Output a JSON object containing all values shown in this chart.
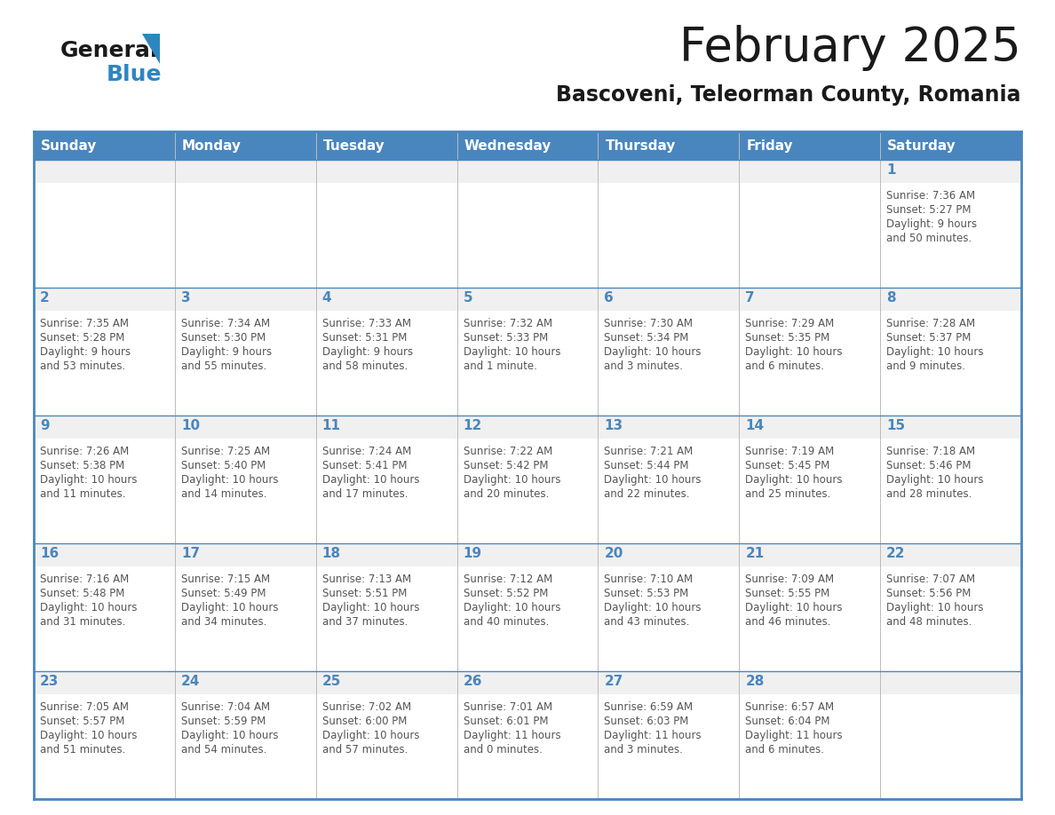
{
  "title": "February 2025",
  "subtitle": "Bascoveni, Teleorman County, Romania",
  "days_of_week": [
    "Sunday",
    "Monday",
    "Tuesday",
    "Wednesday",
    "Thursday",
    "Friday",
    "Saturday"
  ],
  "header_bg": "#4a86be",
  "header_text": "#ffffff",
  "cell_bg_gray": "#f0f0f0",
  "cell_bg_white": "#ffffff",
  "border_color": "#4a86be",
  "day_number_color": "#4a86be",
  "text_color": "#555555",
  "title_color": "#1a1a1a",
  "logo_general_color": "#1a1a1a",
  "logo_blue_color": "#2e86c1",
  "calendar_data": [
    [
      {
        "day": null,
        "info": ""
      },
      {
        "day": null,
        "info": ""
      },
      {
        "day": null,
        "info": ""
      },
      {
        "day": null,
        "info": ""
      },
      {
        "day": null,
        "info": ""
      },
      {
        "day": null,
        "info": ""
      },
      {
        "day": 1,
        "info": "Sunrise: 7:36 AM\nSunset: 5:27 PM\nDaylight: 9 hours\nand 50 minutes."
      }
    ],
    [
      {
        "day": 2,
        "info": "Sunrise: 7:35 AM\nSunset: 5:28 PM\nDaylight: 9 hours\nand 53 minutes."
      },
      {
        "day": 3,
        "info": "Sunrise: 7:34 AM\nSunset: 5:30 PM\nDaylight: 9 hours\nand 55 minutes."
      },
      {
        "day": 4,
        "info": "Sunrise: 7:33 AM\nSunset: 5:31 PM\nDaylight: 9 hours\nand 58 minutes."
      },
      {
        "day": 5,
        "info": "Sunrise: 7:32 AM\nSunset: 5:33 PM\nDaylight: 10 hours\nand 1 minute."
      },
      {
        "day": 6,
        "info": "Sunrise: 7:30 AM\nSunset: 5:34 PM\nDaylight: 10 hours\nand 3 minutes."
      },
      {
        "day": 7,
        "info": "Sunrise: 7:29 AM\nSunset: 5:35 PM\nDaylight: 10 hours\nand 6 minutes."
      },
      {
        "day": 8,
        "info": "Sunrise: 7:28 AM\nSunset: 5:37 PM\nDaylight: 10 hours\nand 9 minutes."
      }
    ],
    [
      {
        "day": 9,
        "info": "Sunrise: 7:26 AM\nSunset: 5:38 PM\nDaylight: 10 hours\nand 11 minutes."
      },
      {
        "day": 10,
        "info": "Sunrise: 7:25 AM\nSunset: 5:40 PM\nDaylight: 10 hours\nand 14 minutes."
      },
      {
        "day": 11,
        "info": "Sunrise: 7:24 AM\nSunset: 5:41 PM\nDaylight: 10 hours\nand 17 minutes."
      },
      {
        "day": 12,
        "info": "Sunrise: 7:22 AM\nSunset: 5:42 PM\nDaylight: 10 hours\nand 20 minutes."
      },
      {
        "day": 13,
        "info": "Sunrise: 7:21 AM\nSunset: 5:44 PM\nDaylight: 10 hours\nand 22 minutes."
      },
      {
        "day": 14,
        "info": "Sunrise: 7:19 AM\nSunset: 5:45 PM\nDaylight: 10 hours\nand 25 minutes."
      },
      {
        "day": 15,
        "info": "Sunrise: 7:18 AM\nSunset: 5:46 PM\nDaylight: 10 hours\nand 28 minutes."
      }
    ],
    [
      {
        "day": 16,
        "info": "Sunrise: 7:16 AM\nSunset: 5:48 PM\nDaylight: 10 hours\nand 31 minutes."
      },
      {
        "day": 17,
        "info": "Sunrise: 7:15 AM\nSunset: 5:49 PM\nDaylight: 10 hours\nand 34 minutes."
      },
      {
        "day": 18,
        "info": "Sunrise: 7:13 AM\nSunset: 5:51 PM\nDaylight: 10 hours\nand 37 minutes."
      },
      {
        "day": 19,
        "info": "Sunrise: 7:12 AM\nSunset: 5:52 PM\nDaylight: 10 hours\nand 40 minutes."
      },
      {
        "day": 20,
        "info": "Sunrise: 7:10 AM\nSunset: 5:53 PM\nDaylight: 10 hours\nand 43 minutes."
      },
      {
        "day": 21,
        "info": "Sunrise: 7:09 AM\nSunset: 5:55 PM\nDaylight: 10 hours\nand 46 minutes."
      },
      {
        "day": 22,
        "info": "Sunrise: 7:07 AM\nSunset: 5:56 PM\nDaylight: 10 hours\nand 48 minutes."
      }
    ],
    [
      {
        "day": 23,
        "info": "Sunrise: 7:05 AM\nSunset: 5:57 PM\nDaylight: 10 hours\nand 51 minutes."
      },
      {
        "day": 24,
        "info": "Sunrise: 7:04 AM\nSunset: 5:59 PM\nDaylight: 10 hours\nand 54 minutes."
      },
      {
        "day": 25,
        "info": "Sunrise: 7:02 AM\nSunset: 6:00 PM\nDaylight: 10 hours\nand 57 minutes."
      },
      {
        "day": 26,
        "info": "Sunrise: 7:01 AM\nSunset: 6:01 PM\nDaylight: 11 hours\nand 0 minutes."
      },
      {
        "day": 27,
        "info": "Sunrise: 6:59 AM\nSunset: 6:03 PM\nDaylight: 11 hours\nand 3 minutes."
      },
      {
        "day": 28,
        "info": "Sunrise: 6:57 AM\nSunset: 6:04 PM\nDaylight: 11 hours\nand 6 minutes."
      },
      {
        "day": null,
        "info": ""
      }
    ]
  ]
}
